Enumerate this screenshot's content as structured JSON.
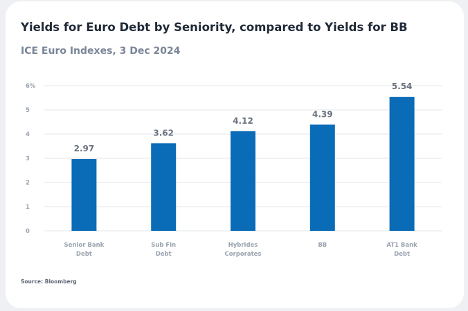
{
  "title": "Yields for Euro Debt by Seniority, compared to Yields for BB",
  "subtitle": "ICE Euro Indexes, 3 Dec 2024",
  "source": "Source: Bloomberg",
  "colors": {
    "bar": "#0a6bb7",
    "grid": "#e3e6ea",
    "tick": "#9aa3af",
    "value_label": "#6b7280"
  },
  "chart_data": {
    "type": "bar",
    "categories": [
      [
        "Senior Bank",
        "Debt"
      ],
      [
        "Sub Fin",
        "Debt"
      ],
      [
        "Hybrides",
        "Corporates"
      ],
      [
        "BB"
      ],
      [
        "AT1 Bank",
        "Debt"
      ]
    ],
    "values": [
      2.97,
      3.62,
      4.12,
      4.39,
      5.54
    ],
    "value_labels": [
      "2.97",
      "3.62",
      "4.12",
      "4.39",
      "5.54"
    ],
    "y_ticks": [
      "0",
      "1",
      "2",
      "3",
      "4",
      "5",
      "6%"
    ],
    "ylim": [
      0,
      6
    ],
    "grid": true
  }
}
